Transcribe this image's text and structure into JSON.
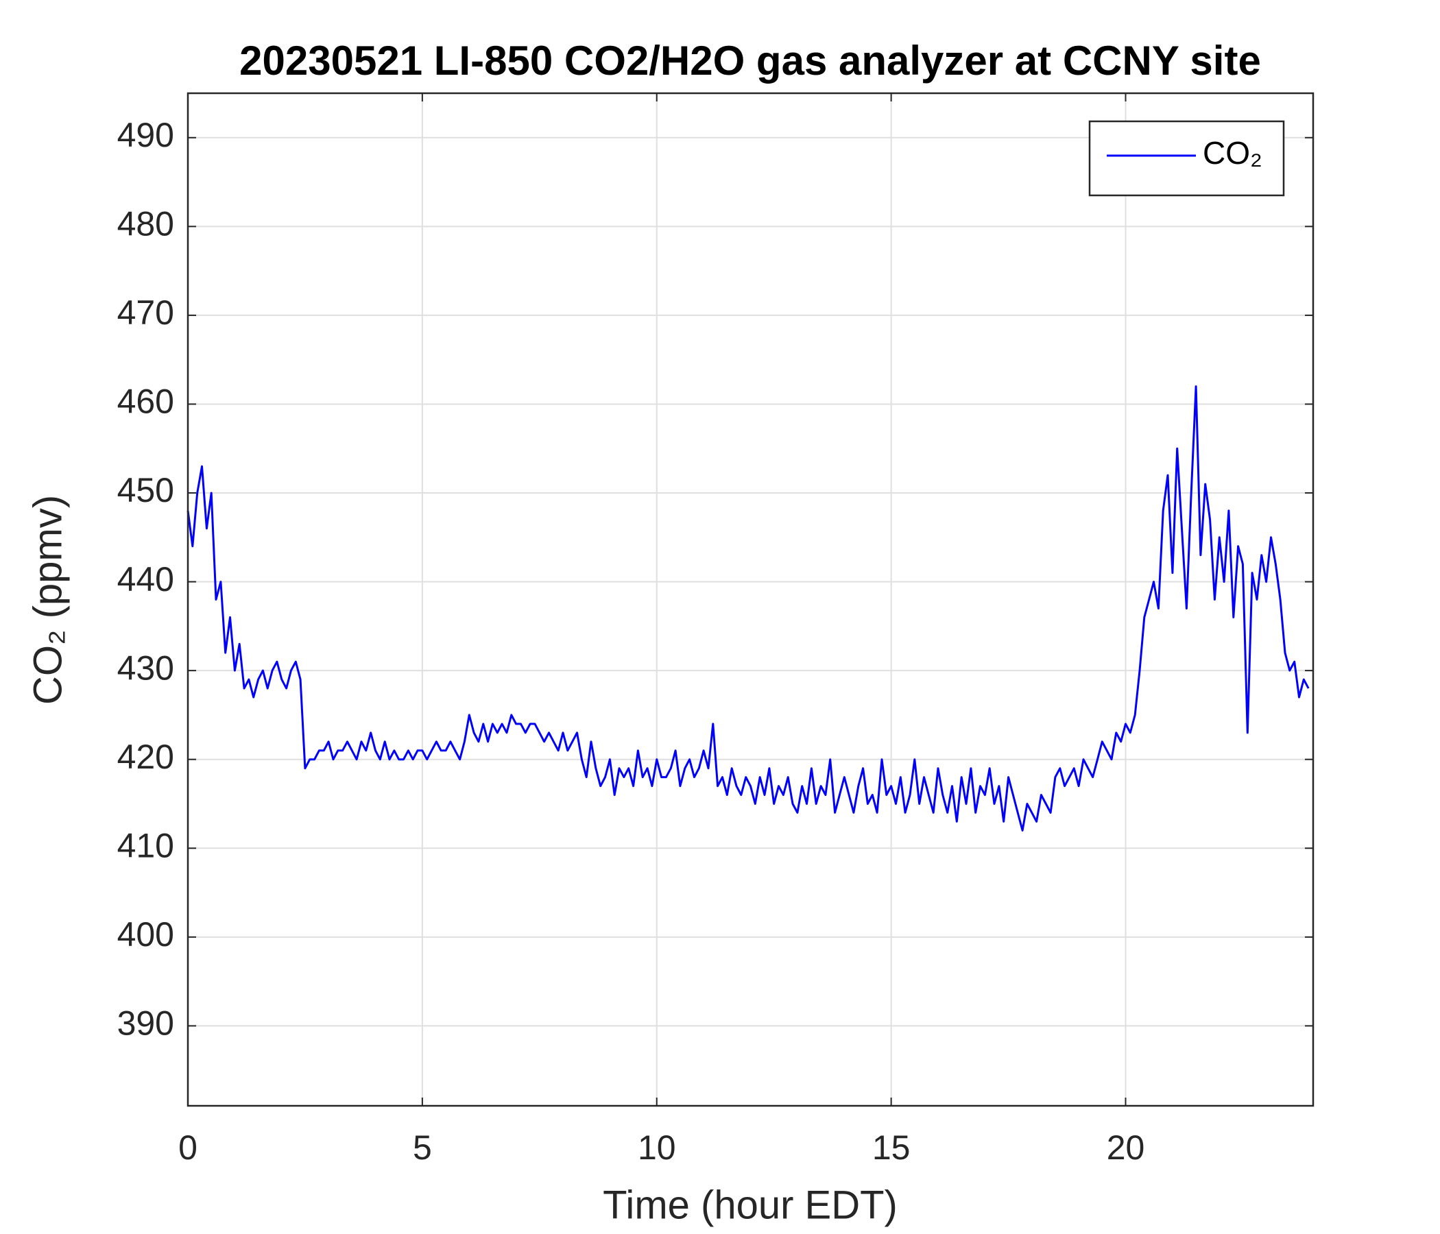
{
  "chart_data": {
    "type": "line",
    "title": "20230521 LI-850 CO2/H2O gas analyzer at CCNY site",
    "x_label": "Time (hour EDT)",
    "y_label": "CO₂ (ppmv)",
    "xlim": [
      0,
      24
    ],
    "xticks": [
      0,
      5,
      10,
      15,
      20
    ],
    "ylim": [
      381,
      495
    ],
    "yticks": [
      390,
      400,
      410,
      420,
      430,
      440,
      450,
      460,
      470,
      480,
      490
    ],
    "grid": true,
    "legend": "upper right",
    "x": [
      0,
      0.1,
      0.2,
      0.3,
      0.4,
      0.5,
      0.6,
      0.7,
      0.8,
      0.9,
      1,
      1.1,
      1.2,
      1.3,
      1.4,
      1.5,
      1.6,
      1.7,
      1.8,
      1.9,
      2,
      2.1,
      2.2,
      2.3,
      2.4,
      2.5,
      2.6,
      2.7,
      2.8,
      2.9,
      3,
      3.1,
      3.2,
      3.3,
      3.4,
      3.5,
      3.6,
      3.7,
      3.8,
      3.9,
      4,
      4.1,
      4.2,
      4.3,
      4.4,
      4.5,
      4.6,
      4.7,
      4.8,
      4.9,
      5,
      5.1,
      5.2,
      5.3,
      5.4,
      5.5,
      5.6,
      5.7,
      5.8,
      5.9,
      6,
      6.1,
      6.2,
      6.3,
      6.4,
      6.5,
      6.6,
      6.7,
      6.8,
      6.9,
      7,
      7.1,
      7.2,
      7.3,
      7.4,
      7.5,
      7.6,
      7.7,
      7.8,
      7.9,
      8,
      8.1,
      8.2,
      8.3,
      8.4,
      8.5,
      8.6,
      8.7,
      8.8,
      8.9,
      9,
      9.1,
      9.2,
      9.3,
      9.4,
      9.5,
      9.6,
      9.7,
      9.8,
      9.9,
      10,
      10.1,
      10.2,
      10.3,
      10.4,
      10.5,
      10.6,
      10.7,
      10.8,
      10.9,
      11,
      11.1,
      11.2,
      11.3,
      11.4,
      11.5,
      11.6,
      11.7,
      11.8,
      11.9,
      12,
      12.1,
      12.2,
      12.3,
      12.4,
      12.5,
      12.6,
      12.7,
      12.8,
      12.9,
      13,
      13.1,
      13.2,
      13.3,
      13.4,
      13.5,
      13.6,
      13.7,
      13.8,
      13.9,
      14,
      14.1,
      14.2,
      14.3,
      14.4,
      14.5,
      14.6,
      14.7,
      14.8,
      14.9,
      15,
      15.1,
      15.2,
      15.3,
      15.4,
      15.5,
      15.6,
      15.7,
      15.8,
      15.9,
      16,
      16.1,
      16.2,
      16.3,
      16.4,
      16.5,
      16.6,
      16.7,
      16.8,
      16.9,
      17,
      17.1,
      17.2,
      17.3,
      17.4,
      17.5,
      17.6,
      17.7,
      17.8,
      17.9,
      18,
      18.1,
      18.2,
      18.3,
      18.4,
      18.5,
      18.6,
      18.7,
      18.8,
      18.9,
      19,
      19.1,
      19.2,
      19.3,
      19.4,
      19.5,
      19.6,
      19.7,
      19.8,
      19.9,
      20,
      20.1,
      20.2,
      20.3,
      20.4,
      20.5,
      20.6,
      20.7,
      20.8,
      20.9,
      21,
      21.1,
      21.2,
      21.3,
      21.4,
      21.5,
      21.6,
      21.7,
      21.8,
      21.9,
      22,
      22.1,
      22.2,
      22.3,
      22.4,
      22.5,
      22.6,
      22.7,
      22.8,
      22.9,
      23,
      23.1,
      23.2,
      23.3,
      23.4,
      23.5,
      23.6,
      23.7,
      23.8,
      23.9
    ],
    "series": [
      {
        "name": "CO₂",
        "color": "#0000ff",
        "values": [
          448,
          444,
          450,
          453,
          446,
          450,
          438,
          440,
          432,
          436,
          430,
          433,
          428,
          429,
          427,
          429,
          430,
          428,
          430,
          431,
          429,
          428,
          430,
          431,
          429,
          419,
          420,
          420,
          421,
          421,
          422,
          420,
          421,
          421,
          422,
          421,
          420,
          422,
          421,
          423,
          421,
          420,
          422,
          420,
          421,
          420,
          420,
          421,
          420,
          421,
          421,
          420,
          421,
          422,
          421,
          421,
          422,
          421,
          420,
          422,
          425,
          423,
          422,
          424,
          422,
          424,
          423,
          424,
          423,
          425,
          424,
          424,
          423,
          424,
          424,
          423,
          422,
          423,
          422,
          421,
          423,
          421,
          422,
          423,
          420,
          418,
          422,
          419,
          417,
          418,
          420,
          416,
          419,
          418,
          419,
          417,
          421,
          418,
          419,
          417,
          420,
          418,
          418,
          419,
          421,
          417,
          419,
          420,
          418,
          419,
          421,
          419,
          424,
          417,
          418,
          416,
          419,
          417,
          416,
          418,
          417,
          415,
          418,
          416,
          419,
          415,
          417,
          416,
          418,
          415,
          414,
          417,
          415,
          419,
          415,
          417,
          416,
          420,
          414,
          416,
          418,
          416,
          414,
          417,
          419,
          415,
          416,
          414,
          420,
          416,
          417,
          415,
          418,
          414,
          416,
          420,
          415,
          418,
          416,
          414,
          419,
          416,
          414,
          417,
          413,
          418,
          415,
          419,
          414,
          417,
          416,
          419,
          415,
          417,
          413,
          418,
          416,
          414,
          412,
          415,
          414,
          413,
          416,
          415,
          414,
          418,
          419,
          417,
          418,
          419,
          417,
          420,
          419,
          418,
          420,
          422,
          421,
          420,
          423,
          422,
          424,
          423,
          425,
          430,
          436,
          438,
          440,
          437,
          448,
          452,
          441,
          455,
          446,
          437,
          450,
          462,
          443,
          451,
          447,
          438,
          445,
          440,
          448,
          436,
          444,
          442,
          423,
          441,
          438,
          443,
          440,
          445,
          442,
          438,
          432,
          430,
          431,
          427,
          429,
          428
        ]
      }
    ]
  }
}
